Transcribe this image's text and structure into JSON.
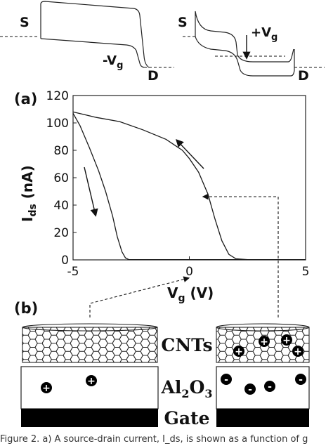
{
  "band_left": {
    "source_label": "S",
    "drain_label": "D",
    "gate_label": "-V",
    "gate_sub": "g"
  },
  "band_right": {
    "source_label": "S",
    "drain_label": "D",
    "gate_label": "+V",
    "gate_sub": "g"
  },
  "panel_a_label": "(a)",
  "panel_b_label": "(b)",
  "chart_data": {
    "type": "line",
    "xlabel_main": "V",
    "xlabel_sub": "g",
    "xlabel_unit": " (V)",
    "ylabel_main": "I",
    "ylabel_sub": "ds",
    "ylabel_unit": " (nA)",
    "xlim": [
      -5,
      5
    ],
    "ylim": [
      0,
      120
    ],
    "xticks": [
      -5,
      0,
      5
    ],
    "yticks": [
      0,
      20,
      40,
      60,
      80,
      100,
      120
    ],
    "series": [
      {
        "values": [
          [
            -5,
            107
          ],
          [
            -4.7,
            98
          ],
          [
            -4.3,
            82
          ],
          [
            -3.9,
            65
          ],
          [
            -3.6,
            50
          ],
          [
            -3.3,
            32
          ],
          [
            -3.1,
            17
          ],
          [
            -2.9,
            6
          ],
          [
            -2.75,
            1.5
          ],
          [
            -2.6,
            0.2
          ],
          [
            5,
            0.2
          ]
        ]
      },
      {
        "values": [
          [
            -5,
            108
          ],
          [
            -4.5,
            106
          ],
          [
            -4,
            104
          ],
          [
            -3,
            101
          ],
          [
            -2,
            95
          ],
          [
            -1,
            88
          ],
          [
            -0.3,
            80
          ],
          [
            0,
            74
          ],
          [
            0.4,
            64
          ],
          [
            0.8,
            48
          ],
          [
            1.1,
            30
          ],
          [
            1.4,
            14
          ],
          [
            1.7,
            4
          ],
          [
            2,
            0.8
          ],
          [
            2.5,
            0.2
          ],
          [
            5,
            0.2
          ]
        ]
      }
    ]
  },
  "panel_b": {
    "left": {
      "cnt_charges": [],
      "oxide_charges": [
        "+",
        "+"
      ]
    },
    "right": {
      "cnt_charges": [
        "+",
        "+",
        "+",
        "+"
      ],
      "oxide_charges": [
        "-",
        "-",
        "-",
        "-"
      ]
    },
    "cnt_label": "CNTs",
    "oxide_label_a": "Al",
    "oxide_sub_a": "2",
    "oxide_label_b": "O",
    "oxide_sub_b": "3",
    "gate_label": "Gate"
  },
  "caption": "Figure 2. a) A source-drain current, I_ds, is shown as a function of g"
}
